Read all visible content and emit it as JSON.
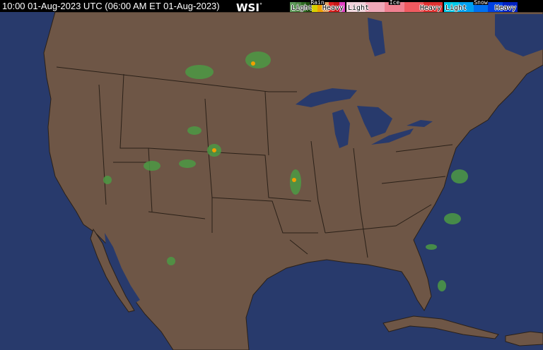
{
  "header": {
    "timestamp": "10:00 01-Aug-2023 UTC  (06:00 AM ET 01-Aug-2023)",
    "brand": "WSI",
    "brand_mark": "°"
  },
  "legend": {
    "rain": {
      "title": "Rain",
      "light": "Light",
      "heavy": "Heavy",
      "colors": [
        "#5e9a5a",
        "#4c8444",
        "#2e6a22",
        "#1e4a10",
        "#d8d000",
        "#f0a000",
        "#e0a060",
        "#e02020",
        "#c81818",
        "#e040c0"
      ]
    },
    "ice": {
      "title": "Ice",
      "light": "Light",
      "heavy": "Heavy",
      "colors": [
        "#f0d0d8",
        "#f0a8b8",
        "#f08090",
        "#f05a60",
        "#e03030"
      ]
    },
    "snow": {
      "title": "Snow",
      "light": "Light",
      "heavy": "Heavy",
      "colors": [
        "#00c8e8",
        "#00a0f0",
        "#0070f0",
        "#0040e0",
        "#0020c0"
      ]
    }
  },
  "map": {
    "ocean_color": "#283a6c",
    "land_color": "#6e5646",
    "border_color": "#2a2018",
    "precip_color": "#4c9a44"
  }
}
